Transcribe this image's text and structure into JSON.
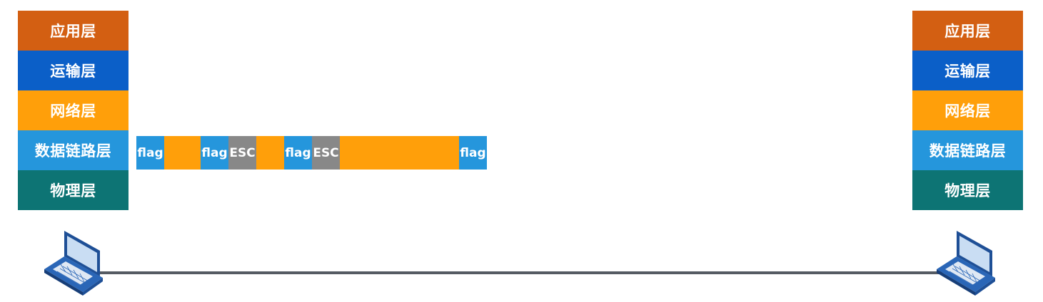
{
  "left_stack": {
    "layers": [
      "应用层",
      "运输层",
      "网络层",
      "数据链路层",
      "物理层"
    ]
  },
  "right_stack": {
    "layers": [
      "应用层",
      "运输层",
      "网络层",
      "数据链路层",
      "物理层"
    ]
  },
  "frame": {
    "segments": [
      {
        "type": "flag",
        "label": "flag"
      },
      {
        "type": "data",
        "label": ""
      },
      {
        "type": "flag",
        "label": "flag"
      },
      {
        "type": "esc",
        "label": "ESC"
      },
      {
        "type": "data",
        "label": ""
      },
      {
        "type": "flag",
        "label": "flag"
      },
      {
        "type": "esc",
        "label": "ESC"
      },
      {
        "type": "data",
        "label": ""
      },
      {
        "type": "flag",
        "label": "flag"
      }
    ]
  },
  "colors": {
    "application": "#d35f12",
    "transport": "#0b5fc8",
    "network": "#ff9f0a",
    "data_link": "#2596dc",
    "physical": "#0d7474",
    "esc": "#888888"
  },
  "icons": {
    "left_host": "laptop-icon",
    "right_host": "laptop-icon"
  }
}
